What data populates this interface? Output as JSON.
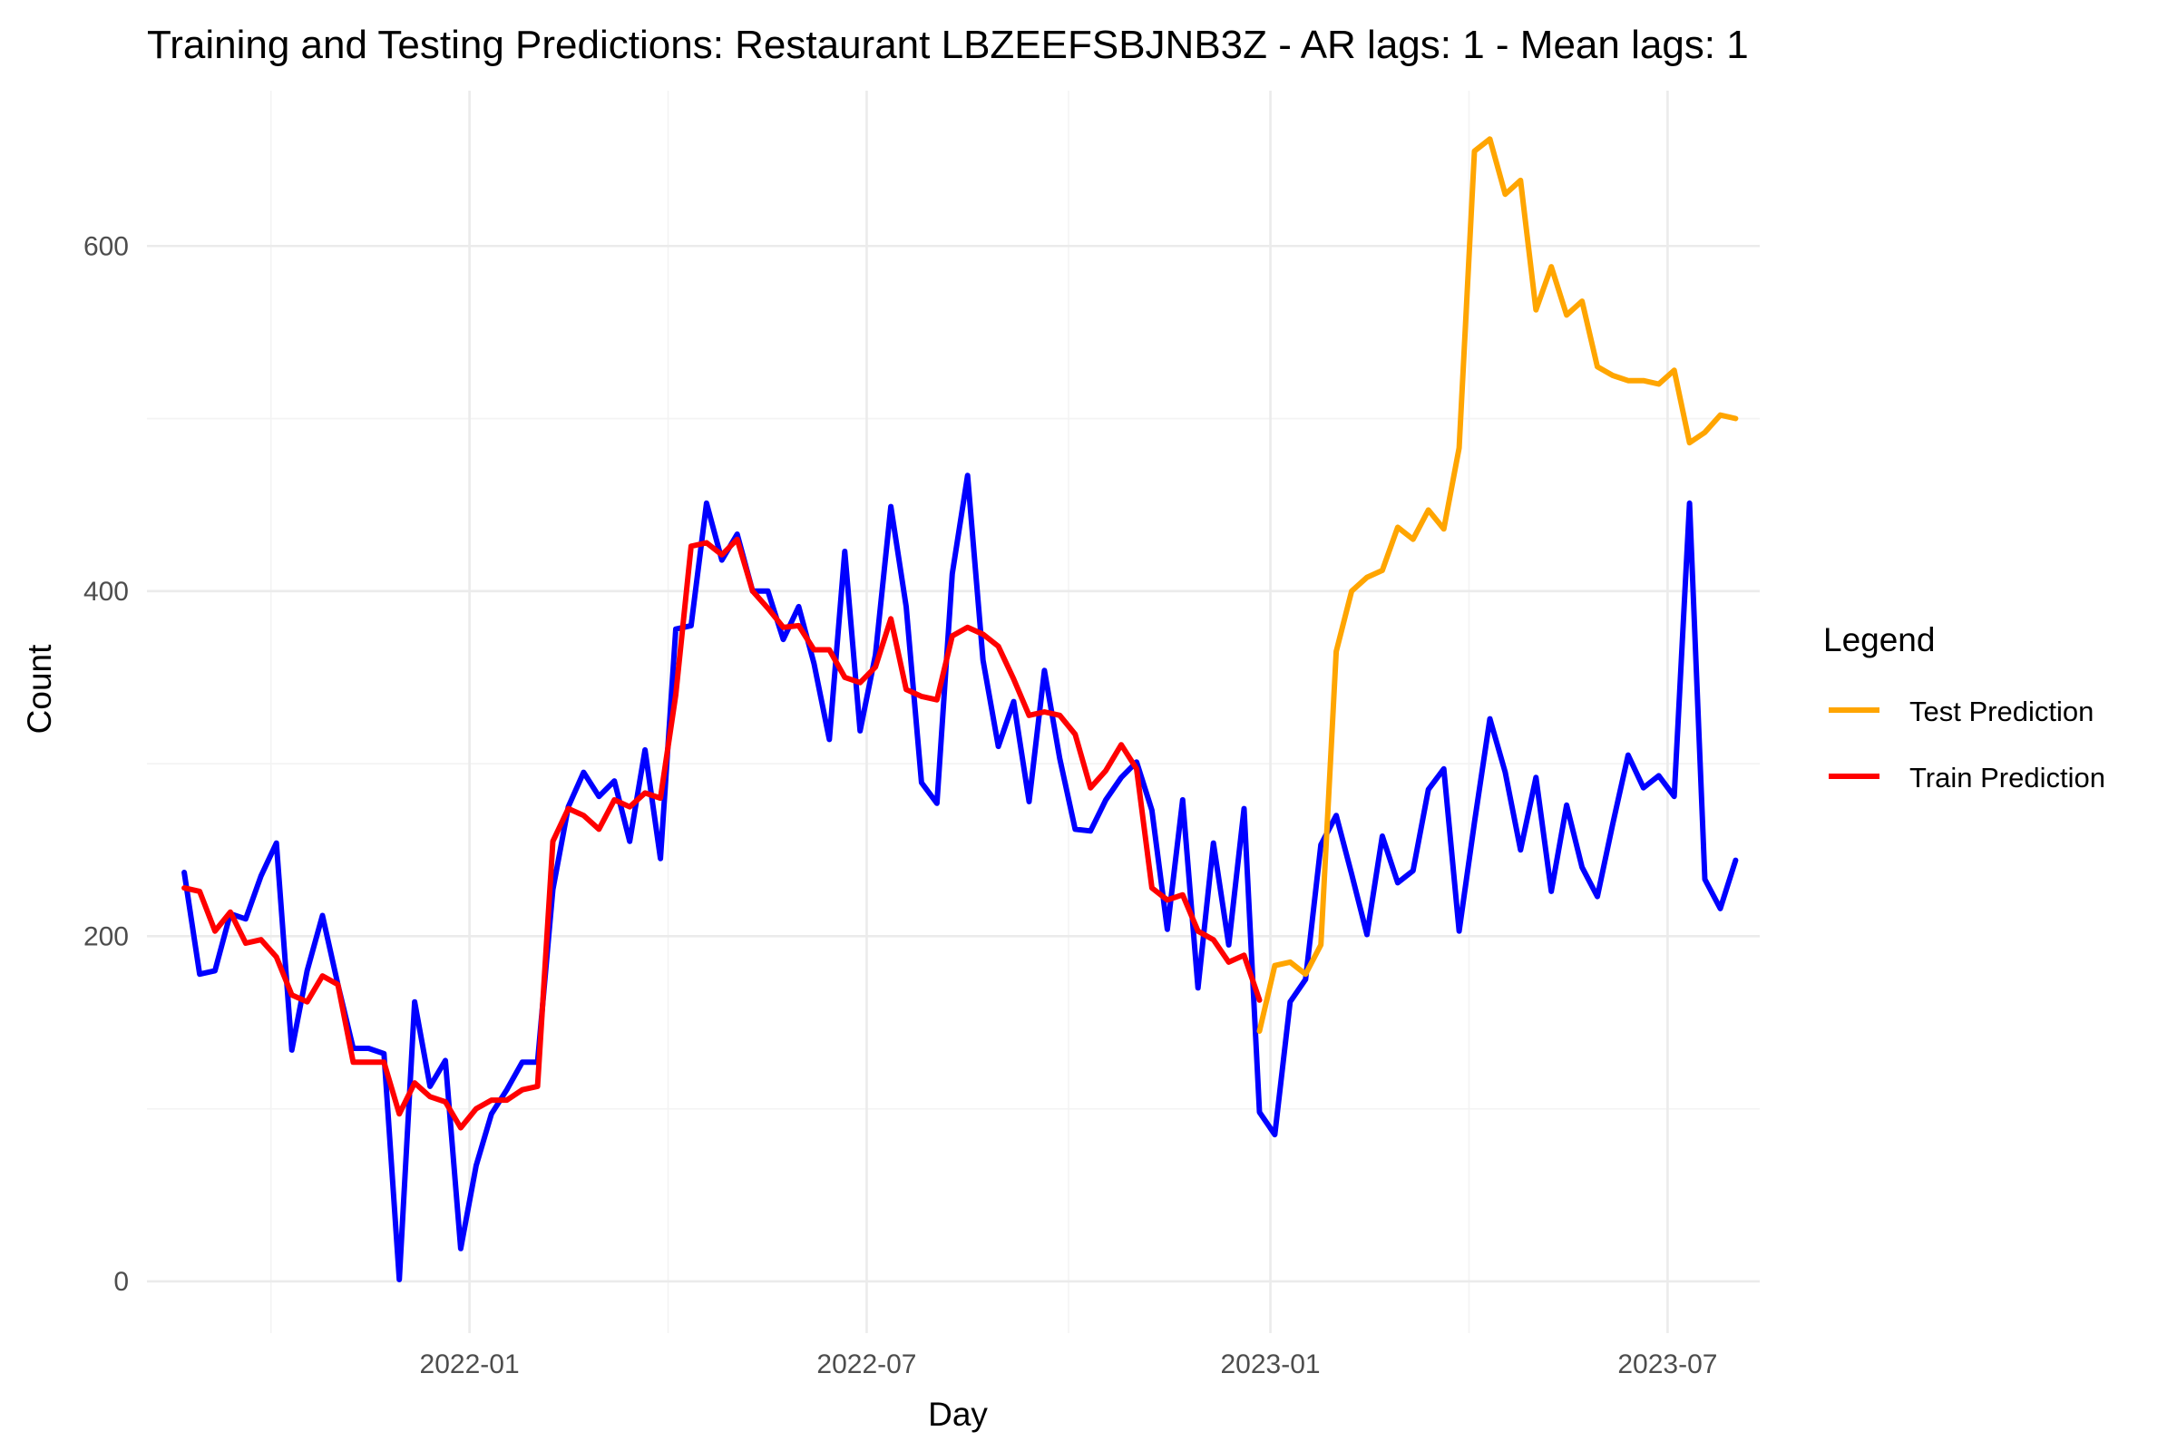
{
  "chart_data": {
    "type": "line",
    "title": "Training and Testing Predictions: Restaurant LBZEEFSBJNB3Z - AR lags: 1 - Mean lags: 1",
    "xlabel": "Day",
    "ylabel": "Count",
    "x_type": "date",
    "xlim": [
      "2021-08-07",
      "2023-08-12"
    ],
    "ylim": [
      -30,
      690
    ],
    "y_ticks": [
      0,
      200,
      400,
      600
    ],
    "y_tick_labels": [
      "0",
      "200",
      "400",
      "600"
    ],
    "x_ticks": [
      "2022-01-01",
      "2022-07-01",
      "2023-01-01",
      "2023-07-01"
    ],
    "x_tick_labels": [
      "2022-01",
      "2022-07",
      "2023-01",
      "2023-07"
    ],
    "grid": true,
    "legend": {
      "title": "Legend",
      "position": "right",
      "entries": [
        {
          "label": "Test Prediction",
          "color": "#FFA500"
        },
        {
          "label": "Train Prediction",
          "color": "#FF0000"
        }
      ]
    },
    "series": [
      {
        "name": "",
        "color": "#0000FF",
        "x": [
          "2021-08-24",
          "2021-08-31",
          "2021-09-07",
          "2021-09-14",
          "2021-09-21",
          "2021-09-28",
          "2021-10-05",
          "2021-10-12",
          "2021-10-19",
          "2021-10-26",
          "2021-11-02",
          "2021-11-09",
          "2021-11-16",
          "2021-11-23",
          "2021-11-30",
          "2021-12-07",
          "2021-12-14",
          "2021-12-21",
          "2021-12-28",
          "2022-01-04",
          "2022-01-11",
          "2022-01-18",
          "2022-01-25",
          "2022-02-01",
          "2022-02-08",
          "2022-02-15",
          "2022-02-22",
          "2022-03-01",
          "2022-03-08",
          "2022-03-15",
          "2022-03-22",
          "2022-03-29",
          "2022-04-05",
          "2022-04-12",
          "2022-04-19",
          "2022-04-26",
          "2022-05-03",
          "2022-05-10",
          "2022-05-17",
          "2022-05-24",
          "2022-05-31",
          "2022-06-07",
          "2022-06-14",
          "2022-06-21",
          "2022-06-28",
          "2022-07-05",
          "2022-07-12",
          "2022-07-19",
          "2022-07-26",
          "2022-08-02",
          "2022-08-09",
          "2022-08-16",
          "2022-08-23",
          "2022-08-30",
          "2022-09-06",
          "2022-09-13",
          "2022-09-20",
          "2022-09-27",
          "2022-10-04",
          "2022-10-11",
          "2022-10-18",
          "2022-10-25",
          "2022-11-01",
          "2022-11-08",
          "2022-11-15",
          "2022-11-22",
          "2022-11-29",
          "2022-12-06",
          "2022-12-13",
          "2022-12-20",
          "2022-12-27",
          "2023-01-03",
          "2023-01-10",
          "2023-01-17",
          "2023-01-24",
          "2023-01-31",
          "2023-02-07",
          "2023-02-14",
          "2023-02-21",
          "2023-02-28",
          "2023-03-07",
          "2023-03-14",
          "2023-03-21",
          "2023-03-28",
          "2023-04-04",
          "2023-04-11",
          "2023-04-18",
          "2023-04-25",
          "2023-05-02",
          "2023-05-09",
          "2023-05-16",
          "2023-05-23",
          "2023-05-30",
          "2023-06-06",
          "2023-06-13",
          "2023-06-20",
          "2023-06-27",
          "2023-07-04",
          "2023-07-11",
          "2023-07-18",
          "2023-07-25",
          "2023-08-01"
        ],
        "y": [
          237,
          178,
          180,
          213,
          210,
          235,
          254,
          134,
          180,
          212,
          172,
          135,
          135,
          132,
          1,
          162,
          113,
          128,
          19,
          67,
          97,
          111,
          127,
          127,
          227,
          275,
          295,
          281,
          290,
          255,
          308,
          245,
          378,
          380,
          451,
          418,
          433,
          400,
          400,
          372,
          391,
          358,
          314,
          423,
          319,
          363,
          449,
          391,
          289,
          277,
          410,
          467,
          360,
          310,
          336,
          278,
          354,
          303,
          262,
          261,
          279,
          292,
          301,
          273,
          204,
          279,
          170,
          254,
          195,
          274,
          98,
          85,
          162,
          175,
          253,
          270,
          236,
          201,
          258,
          231,
          238,
          285,
          297,
          203,
          266,
          326,
          295,
          250,
          292,
          226,
          276,
          240,
          223,
          265,
          305,
          286,
          293,
          281,
          451,
          233,
          216,
          244
        ]
      },
      {
        "name": "Train Prediction",
        "color": "#FF0000",
        "x": [
          "2021-08-24",
          "2021-08-31",
          "2021-09-07",
          "2021-09-14",
          "2021-09-21",
          "2021-09-28",
          "2021-10-05",
          "2021-10-12",
          "2021-10-19",
          "2021-10-26",
          "2021-11-02",
          "2021-11-09",
          "2021-11-16",
          "2021-11-23",
          "2021-11-30",
          "2021-12-07",
          "2021-12-14",
          "2021-12-21",
          "2021-12-28",
          "2022-01-04",
          "2022-01-11",
          "2022-01-18",
          "2022-01-25",
          "2022-02-01",
          "2022-02-08",
          "2022-02-15",
          "2022-02-22",
          "2022-03-01",
          "2022-03-08",
          "2022-03-15",
          "2022-03-22",
          "2022-03-29",
          "2022-04-05",
          "2022-04-12",
          "2022-04-19",
          "2022-04-26",
          "2022-05-03",
          "2022-05-10",
          "2022-05-17",
          "2022-05-24",
          "2022-05-31",
          "2022-06-07",
          "2022-06-14",
          "2022-06-21",
          "2022-06-28",
          "2022-07-05",
          "2022-07-12",
          "2022-07-19",
          "2022-07-26",
          "2022-08-02",
          "2022-08-09",
          "2022-08-16",
          "2022-08-23",
          "2022-08-30",
          "2022-09-06",
          "2022-09-13",
          "2022-09-20",
          "2022-09-27",
          "2022-10-04",
          "2022-10-11",
          "2022-10-18",
          "2022-10-25",
          "2022-11-01",
          "2022-11-08",
          "2022-11-15",
          "2022-11-22",
          "2022-11-29",
          "2022-12-06",
          "2022-12-13",
          "2022-12-20",
          "2022-12-27"
        ],
        "y": [
          228,
          226,
          203,
          214,
          196,
          198,
          188,
          166,
          162,
          177,
          172,
          127,
          127,
          127,
          97,
          115,
          107,
          104,
          89,
          100,
          105,
          105,
          111,
          113,
          255,
          274,
          270,
          262,
          279,
          275,
          283,
          280,
          340,
          426,
          428,
          421,
          430,
          400,
          390,
          379,
          380,
          366,
          366,
          350,
          347,
          356,
          384,
          343,
          339,
          337,
          374,
          379,
          375,
          368,
          349,
          328,
          330,
          328,
          317,
          286,
          296,
          311,
          297,
          228,
          221,
          224,
          203,
          198,
          185,
          189,
          163
        ]
      },
      {
        "name": "Test Prediction",
        "color": "#FFA500",
        "x": [
          "2022-12-27",
          "2023-01-03",
          "2023-01-10",
          "2023-01-17",
          "2023-01-24",
          "2023-01-31",
          "2023-02-07",
          "2023-02-14",
          "2023-02-21",
          "2023-02-28",
          "2023-03-07",
          "2023-03-14",
          "2023-03-21",
          "2023-03-28",
          "2023-04-04",
          "2023-04-11",
          "2023-04-18",
          "2023-04-25",
          "2023-05-02",
          "2023-05-09",
          "2023-05-16",
          "2023-05-23",
          "2023-05-30",
          "2023-06-06",
          "2023-06-13",
          "2023-06-20",
          "2023-06-27",
          "2023-07-04",
          "2023-07-11",
          "2023-07-18",
          "2023-07-25",
          "2023-08-01"
        ],
        "y": [
          145,
          183,
          185,
          178,
          195,
          365,
          400,
          408,
          412,
          437,
          430,
          447,
          436,
          483,
          655,
          662,
          630,
          638,
          563,
          588,
          560,
          568,
          530,
          525,
          522,
          522,
          520,
          528,
          486,
          492,
          502,
          500
        ]
      }
    ]
  }
}
